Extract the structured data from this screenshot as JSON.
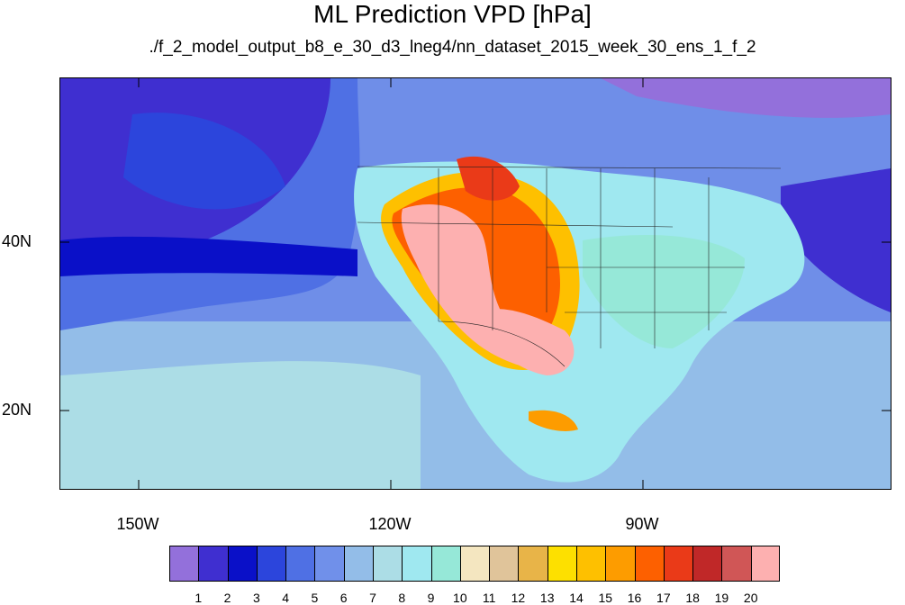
{
  "title": "ML Prediction VPD [hPa]",
  "subtitle": "./f_2_model_output_b8_e_30_d3_lneg4/nn_dataset_2015_week_30_ens_1_f_2",
  "axes": {
    "x_ticks": [
      "150W",
      "120W",
      "90W"
    ],
    "y_ticks": [
      "40N",
      "20N"
    ]
  },
  "colorbar": {
    "colors": [
      "#9370db",
      "#3f2fd0",
      "#0a10c8",
      "#2c45dc",
      "#4f70e4",
      "#7090ea",
      "#93bde8",
      "#acdde6",
      "#9fe8f0",
      "#96e8d8",
      "#f4e6c0",
      "#e0c49a",
      "#e8b448",
      "#fde000",
      "#fec000",
      "#fd9c00",
      "#fd6000",
      "#ea3a18",
      "#c02828",
      "#d05656",
      "#fdb0b0"
    ],
    "labels": [
      "1",
      "2",
      "3",
      "4",
      "5",
      "6",
      "7",
      "8",
      "9",
      "10",
      "11",
      "12",
      "13",
      "14",
      "15",
      "16",
      "17",
      "18",
      "19",
      "20"
    ]
  }
}
